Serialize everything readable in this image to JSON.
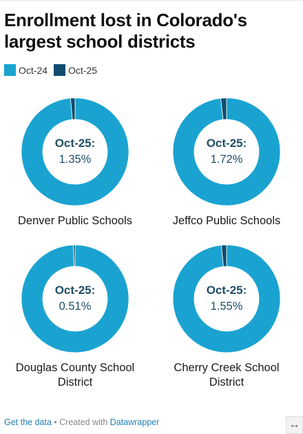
{
  "header": {
    "title": "Enrollment lost in Colorado's largest school districts"
  },
  "legend": [
    {
      "label": "Oct-24",
      "color": "#1aa3d1"
    },
    {
      "label": "Oct-25",
      "color": "#0f4c6e"
    }
  ],
  "chart_data": [
    {
      "type": "pie",
      "title": "Denver Public Schools",
      "categories": [
        "Oct-24",
        "Oct-25"
      ],
      "center_label": "Oct-25:",
      "center_value": "1.35%",
      "values": [
        98.65,
        1.35
      ]
    },
    {
      "type": "pie",
      "title": "Jeffco Public Schools",
      "categories": [
        "Oct-24",
        "Oct-25"
      ],
      "center_label": "Oct-25:",
      "center_value": "1.72%",
      "values": [
        98.28,
        1.72
      ]
    },
    {
      "type": "pie",
      "title": "Douglas County School District",
      "categories": [
        "Oct-24",
        "Oct-25"
      ],
      "center_label": "Oct-25:",
      "center_value": "0.51%",
      "values": [
        99.49,
        0.51
      ]
    },
    {
      "type": "pie",
      "title": "Cherry Creek School District",
      "categories": [
        "Oct-24",
        "Oct-25"
      ],
      "center_label": "Oct-25:",
      "center_value": "1.55%",
      "values": [
        98.45,
        1.55
      ]
    }
  ],
  "footer": {
    "get_data": "Get the data",
    "separator": " • Created with ",
    "tool": "Datawrapper"
  },
  "expand_icon": "↔"
}
